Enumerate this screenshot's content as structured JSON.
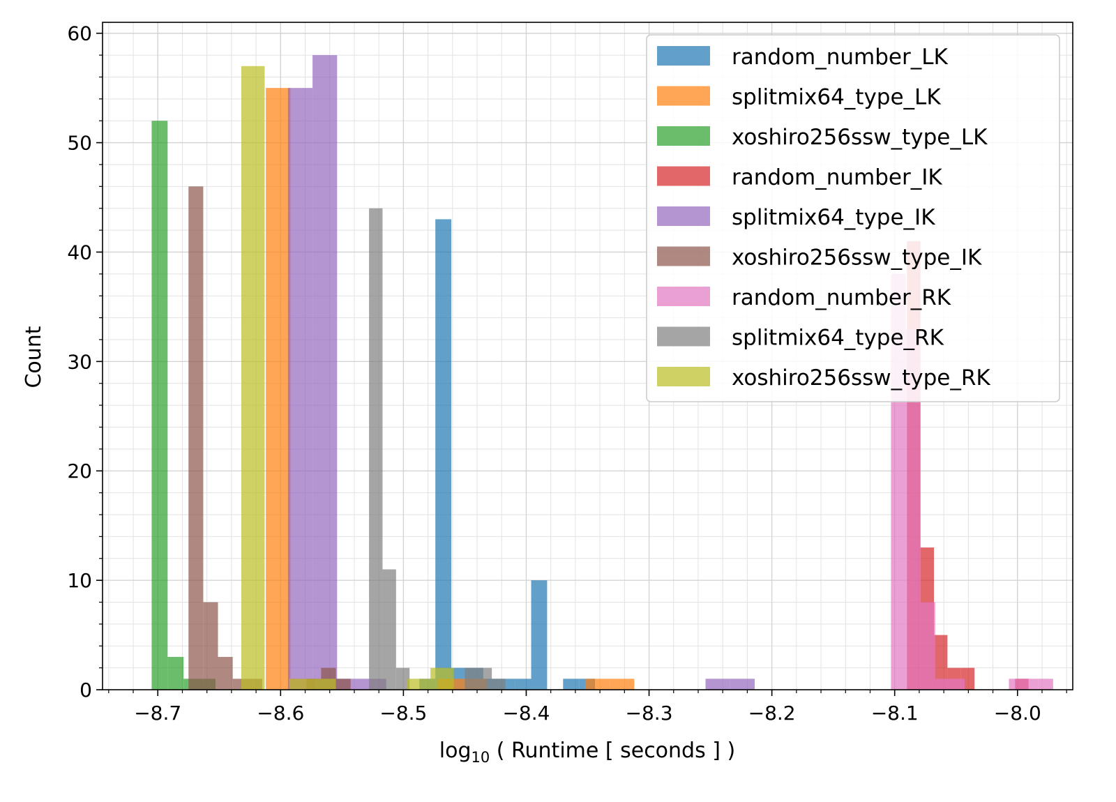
{
  "chart_data": {
    "type": "bar",
    "subtype": "overlapping-histogram",
    "title": "",
    "xlabel_prefix": "log",
    "xlabel_sub": "10",
    "xlabel_rest": " ( Runtime [ seconds ] )",
    "ylabel": "Count",
    "xlim": [
      -8.745,
      -7.955
    ],
    "ylim": [
      0,
      61
    ],
    "xticks": [
      -8.7,
      -8.6,
      -8.5,
      -8.4,
      -8.3,
      -8.2,
      -8.1,
      -8.0
    ],
    "xtick_labels": [
      "−8.7",
      "−8.6",
      "−8.5",
      "−8.4",
      "−8.3",
      "−8.2",
      "−8.1",
      "−8.0"
    ],
    "yticks": [
      0,
      10,
      20,
      30,
      40,
      50,
      60
    ],
    "ytick_labels": [
      "0",
      "10",
      "20",
      "30",
      "40",
      "50",
      "60"
    ],
    "grid": true,
    "minor_grid": true,
    "bar_opacity": 0.7,
    "legend_position": "top-right",
    "series": [
      {
        "name": "random_number_LK",
        "color": "#1f77b4",
        "bins": [
          [
            -8.487,
            -8.474,
            1
          ],
          [
            -8.474,
            -8.461,
            43
          ],
          [
            -8.461,
            -8.448,
            2
          ],
          [
            -8.448,
            -8.435,
            2
          ],
          [
            -8.435,
            -8.422,
            1
          ],
          [
            -8.422,
            -8.409,
            1
          ],
          [
            -8.409,
            -8.396,
            1
          ],
          [
            -8.396,
            -8.383,
            10
          ],
          [
            -8.37,
            -8.357,
            1
          ],
          [
            -8.357,
            -8.344,
            1
          ]
        ]
      },
      {
        "name": "splitmix64_type_LK",
        "color": "#ff7f0e",
        "bins": [
          [
            -8.612,
            -8.592,
            55
          ],
          [
            -8.592,
            -8.572,
            1
          ],
          [
            -8.472,
            -8.452,
            1
          ],
          [
            -8.452,
            -8.432,
            1
          ],
          [
            -8.352,
            -8.332,
            1
          ],
          [
            -8.332,
            -8.312,
            1
          ]
        ]
      },
      {
        "name": "xoshiro256ssw_type_LK",
        "color": "#2ca02c",
        "bins": [
          [
            -8.705,
            -8.692,
            52
          ],
          [
            -8.692,
            -8.679,
            3
          ],
          [
            -8.679,
            -8.666,
            1
          ],
          [
            -8.666,
            -8.653,
            1
          ]
        ]
      },
      {
        "name": "random_number_IK",
        "color": "#d62728",
        "bins": [
          [
            -8.09,
            -8.079,
            41
          ],
          [
            -8.079,
            -8.068,
            13
          ],
          [
            -8.068,
            -8.057,
            5
          ],
          [
            -8.057,
            -8.046,
            2
          ],
          [
            -8.046,
            -8.035,
            2
          ],
          [
            -8.002,
            -7.991,
            1
          ]
        ]
      },
      {
        "name": "splitmix64_type_IK",
        "color": "#9467bd",
        "bins": [
          [
            -8.594,
            -8.574,
            55
          ],
          [
            -8.574,
            -8.554,
            58
          ],
          [
            -8.554,
            -8.534,
            1
          ],
          [
            -8.534,
            -8.514,
            1
          ],
          [
            -8.254,
            -8.234,
            1
          ],
          [
            -8.234,
            -8.214,
            1
          ]
        ]
      },
      {
        "name": "xoshiro256ssw_type_IK",
        "color": "#8c564b",
        "bins": [
          [
            -8.675,
            -8.663,
            46
          ],
          [
            -8.663,
            -8.651,
            8
          ],
          [
            -8.651,
            -8.639,
            3
          ],
          [
            -8.639,
            -8.627,
            1
          ],
          [
            -8.627,
            -8.615,
            1
          ],
          [
            -8.579,
            -8.567,
            1
          ],
          [
            -8.567,
            -8.555,
            2
          ],
          [
            -8.555,
            -8.543,
            1
          ]
        ]
      },
      {
        "name": "random_number_RK",
        "color": "#e377c2",
        "bins": [
          [
            -8.103,
            -8.091,
            38
          ],
          [
            -8.091,
            -8.079,
            33
          ],
          [
            -8.079,
            -8.067,
            8
          ],
          [
            -8.067,
            -8.055,
            1
          ],
          [
            -8.055,
            -8.043,
            1
          ],
          [
            -8.007,
            -7.995,
            1
          ],
          [
            -7.995,
            -7.983,
            1
          ],
          [
            -7.983,
            -7.971,
            1
          ]
        ]
      },
      {
        "name": "splitmix64_type_RK",
        "color": "#7f7f7f",
        "bins": [
          [
            -8.528,
            -8.517,
            44
          ],
          [
            -8.517,
            -8.506,
            11
          ],
          [
            -8.506,
            -8.495,
            2
          ],
          [
            -8.45,
            -8.439,
            2
          ],
          [
            -8.439,
            -8.428,
            2
          ],
          [
            -8.428,
            -8.417,
            1
          ]
        ]
      },
      {
        "name": "xoshiro256ssw_type_RK",
        "color": "#bcbd22",
        "bins": [
          [
            -8.632,
            -8.613,
            57
          ],
          [
            -8.593,
            -8.574,
            1
          ],
          [
            -8.574,
            -8.555,
            1
          ],
          [
            -8.497,
            -8.478,
            1
          ],
          [
            -8.478,
            -8.459,
            2
          ]
        ]
      }
    ]
  }
}
